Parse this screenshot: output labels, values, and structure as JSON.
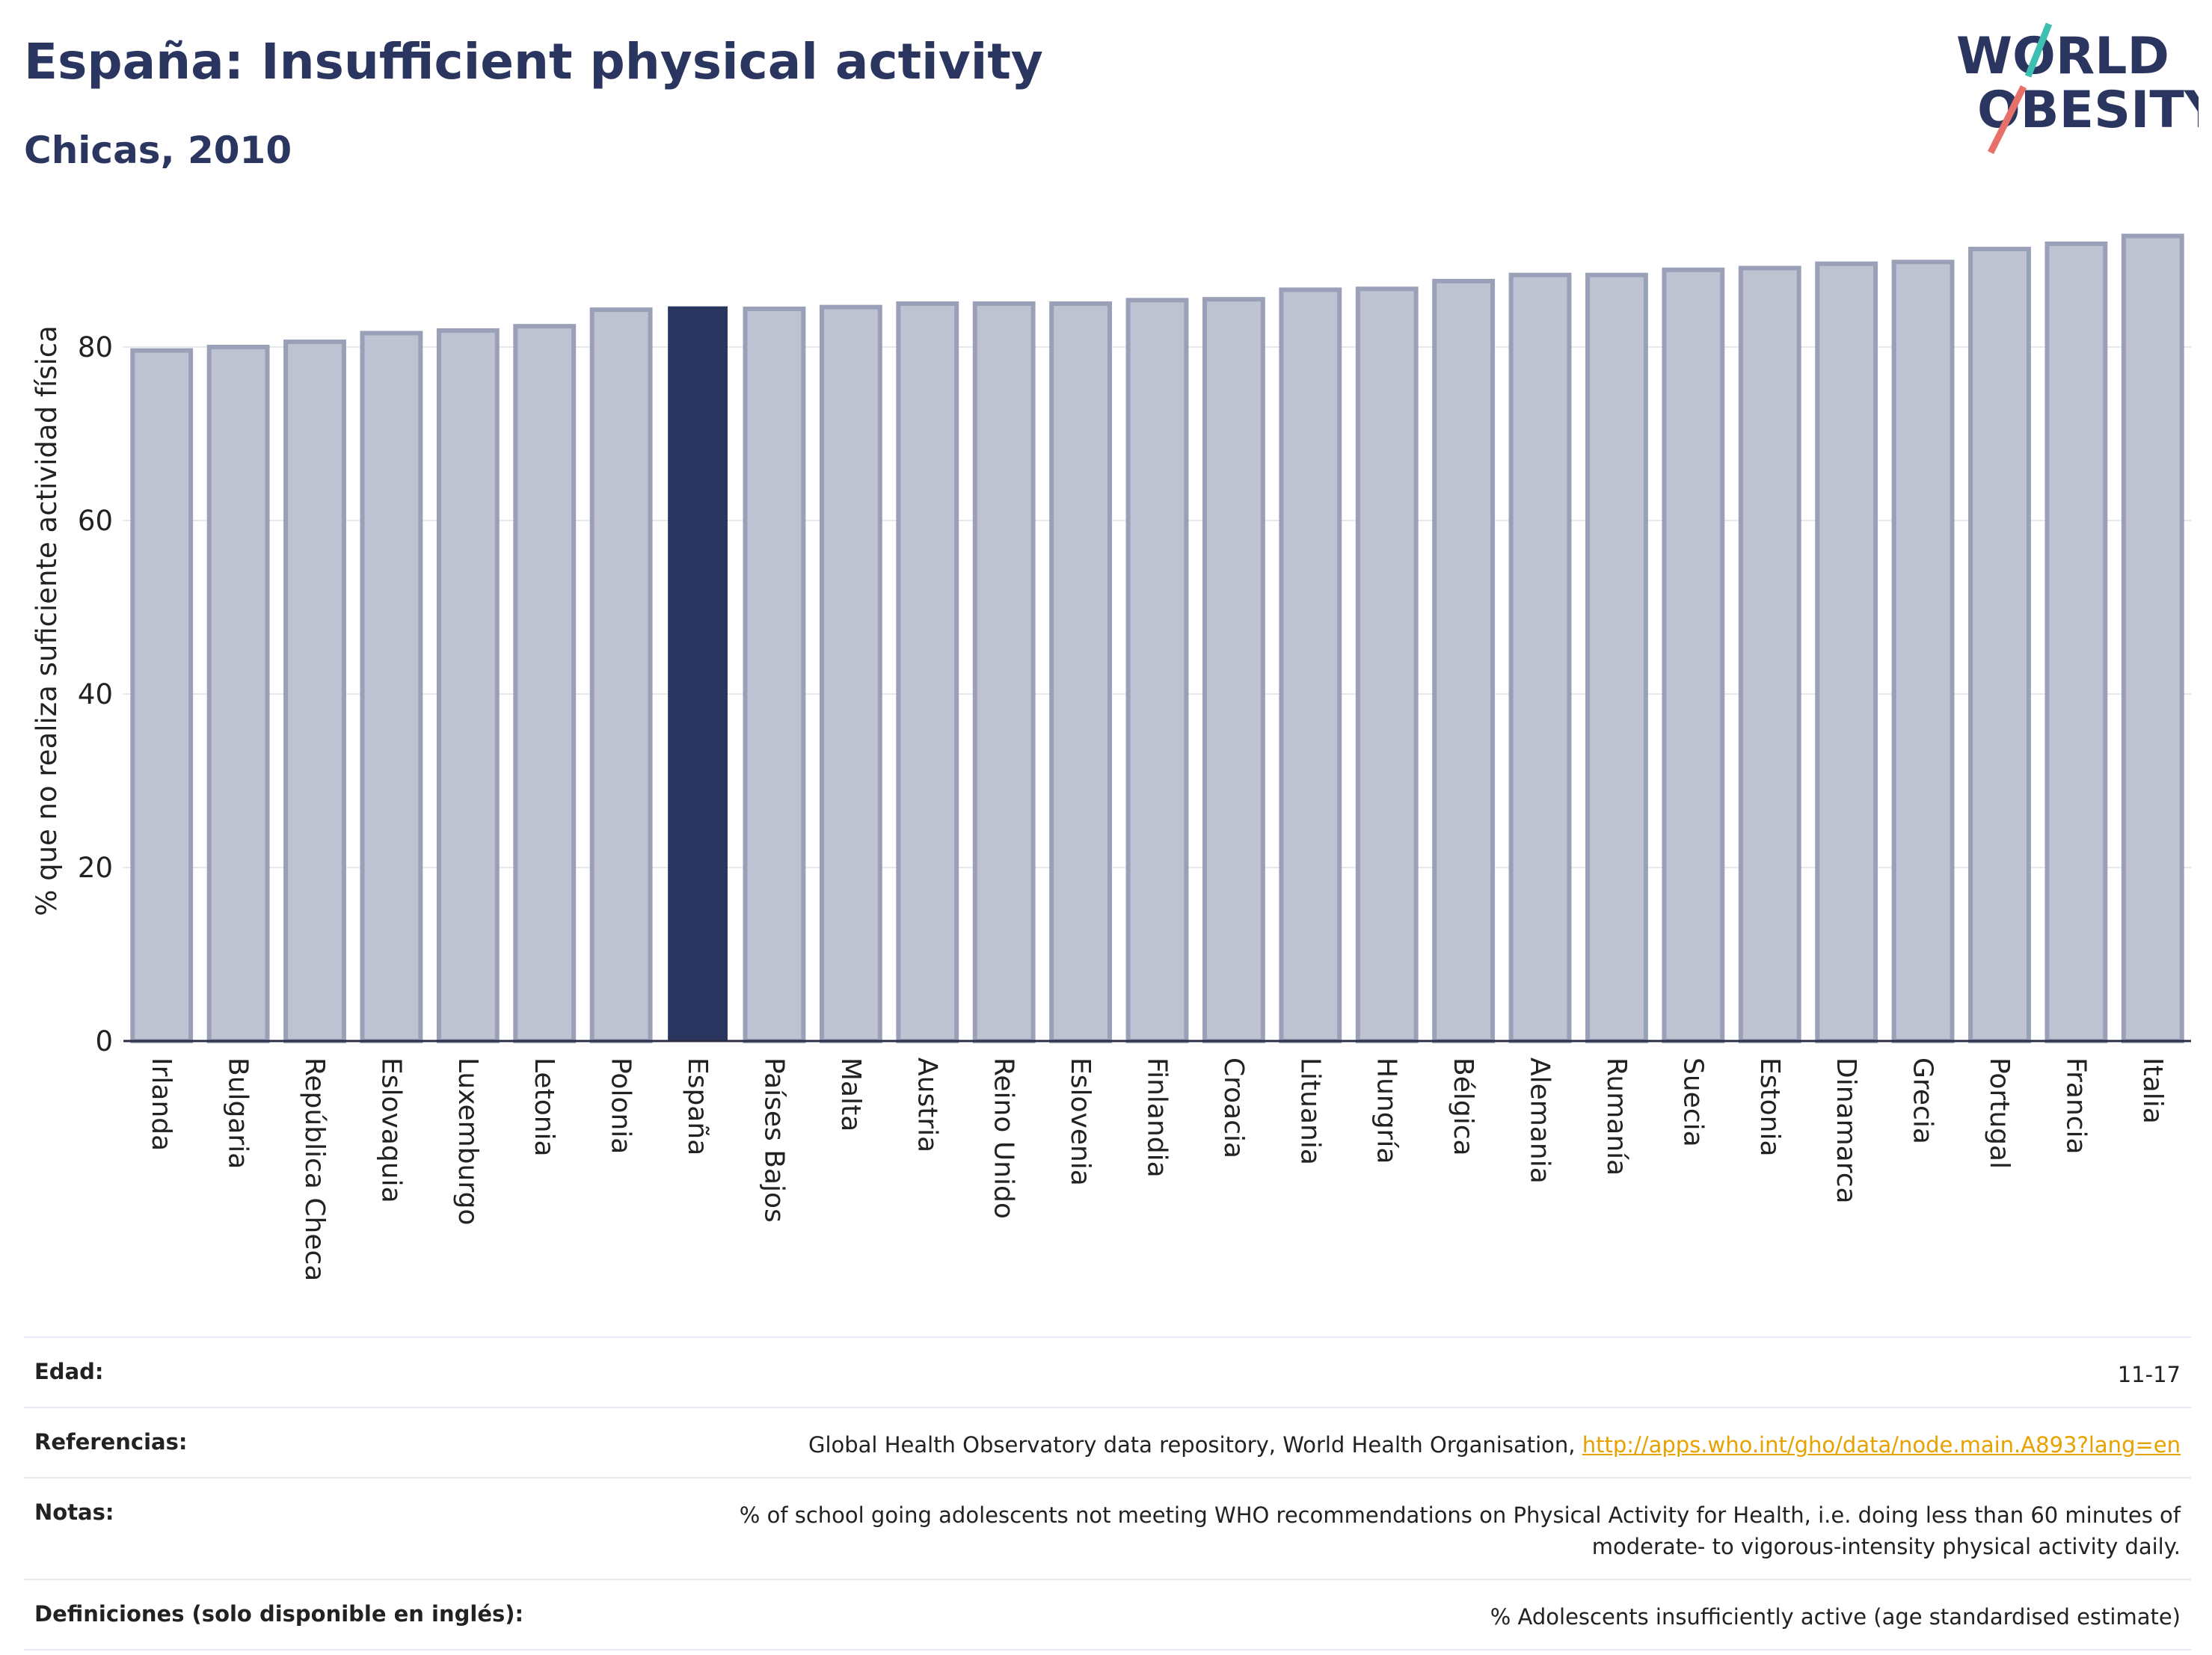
{
  "header": {
    "title": "España: Insufficient physical activity",
    "subtitle": "Chicas, 2010"
  },
  "logo": {
    "line1": "WORLD",
    "line2": "OBESITY"
  },
  "colors": {
    "highlight": "#2a3560",
    "bar": "#bfc3d1",
    "bar_stroke": "#9aa0b8",
    "text_dark": "#2a3560",
    "link": "#e8a200",
    "logo_teal": "#3dbfb1",
    "logo_red": "#e8706a"
  },
  "chart_data": {
    "type": "bar",
    "ylabel": "% que no realiza suficiente actividad física",
    "ylim": [
      0,
      95
    ],
    "yticks": [
      0,
      20,
      40,
      60,
      80
    ],
    "grid": true,
    "highlight": "España",
    "categories": [
      "Irlanda",
      "Bulgaria",
      "República Checa",
      "Eslovaquia",
      "Luxemburgo",
      "Letonia",
      "Polonia",
      "España",
      "Países Bajos",
      "Malta",
      "Austria",
      "Reino Unido",
      "Eslovenia",
      "Finlandia",
      "Croacia",
      "Lituania",
      "Hungría",
      "Bélgica",
      "Alemania",
      "Rumanía",
      "Suecia",
      "Estonia",
      "Dinamarca",
      "Grecia",
      "Portugal",
      "Francia",
      "Italia"
    ],
    "values": [
      79.6,
      80.0,
      80.6,
      81.6,
      81.9,
      82.4,
      84.3,
      84.6,
      84.4,
      84.6,
      85.0,
      85.0,
      85.0,
      85.4,
      85.5,
      86.6,
      86.7,
      87.6,
      88.3,
      88.3,
      88.9,
      89.1,
      89.6,
      89.8,
      91.3,
      91.9,
      92.8
    ]
  },
  "meta": {
    "edad_label": "Edad:",
    "edad_value": "11-17",
    "ref_label": "Referencias:",
    "ref_text": "Global Health Observatory data repository, World Health Organisation,",
    "ref_link": "http://apps.who.int/gho/data/node.main.A893?lang=en",
    "notas_label": "Notas:",
    "notas_line1": "% of school going adolescents not meeting WHO recommendations on Physical Activity for Health, i.e. doing less than 60 minutes of",
    "notas_line2": "moderate- to vigorous-intensity physical activity daily.",
    "def_label": "Definiciones (solo disponible en inglés):",
    "def_value": "% Adolescents insufficiently active (age standardised estimate)"
  }
}
